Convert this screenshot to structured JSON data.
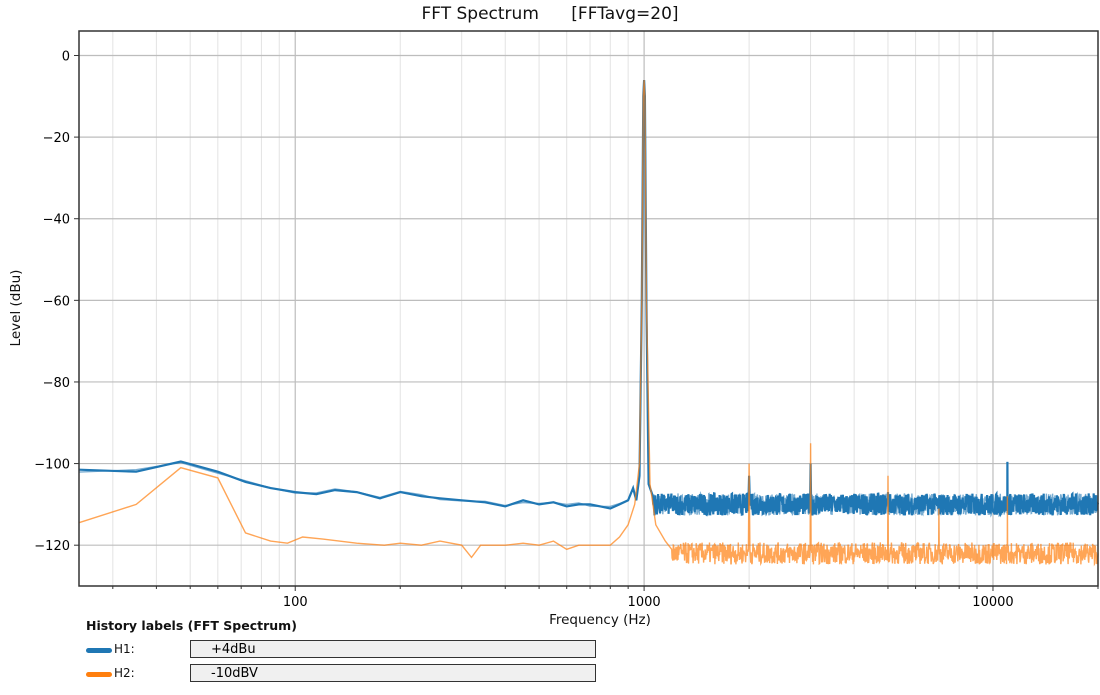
{
  "chart_title": "FFT Spectrum      [FFTavg=20]",
  "history": {
    "title": "History labels (FFT Spectrum)",
    "rows": [
      {
        "name": "H1:",
        "value": "+4dBu",
        "color": "#1f77b4"
      },
      {
        "name": "H2:",
        "value": "-10dBV",
        "color": "#ff7f0e"
      }
    ]
  },
  "chart_data": {
    "type": "line",
    "title": "FFT Spectrum      [FFTavg=20]",
    "xlabel": "Frequency (Hz)",
    "ylabel": "Level (dBu)",
    "xscale": "log",
    "xlim": [
      24,
      20000
    ],
    "ylim": [
      -130,
      6
    ],
    "xticks": [
      100,
      1000,
      10000
    ],
    "xtick_labels": [
      "100",
      "1000",
      "10000"
    ],
    "yticks": [
      0,
      -20,
      -40,
      -60,
      -80,
      -100,
      -120
    ],
    "ytick_labels": [
      "0",
      "−20",
      "−40",
      "−60",
      "−80",
      "−100",
      "−120"
    ],
    "grid": true,
    "legend": "none (history labels below plot)",
    "series": [
      {
        "name": "H1 (+4dBu)",
        "color": "#1f77b4",
        "width": 2.2,
        "points": [
          [
            24,
            -101.5
          ],
          [
            35,
            -102
          ],
          [
            47,
            -99.5
          ],
          [
            60,
            -102
          ],
          [
            72,
            -104.5
          ],
          [
            85,
            -106
          ],
          [
            100,
            -107
          ],
          [
            115,
            -107.5
          ],
          [
            130,
            -106.5
          ],
          [
            150,
            -107
          ],
          [
            175,
            -108.5
          ],
          [
            200,
            -107
          ],
          [
            230,
            -108
          ],
          [
            260,
            -108.5
          ],
          [
            300,
            -109
          ],
          [
            350,
            -109.5
          ],
          [
            400,
            -110.5
          ],
          [
            450,
            -109
          ],
          [
            500,
            -110
          ],
          [
            550,
            -109.5
          ],
          [
            600,
            -110.5
          ],
          [
            650,
            -110
          ],
          [
            700,
            -110
          ],
          [
            750,
            -110.5
          ],
          [
            800,
            -111
          ],
          [
            850,
            -110
          ],
          [
            900,
            -109
          ],
          [
            930,
            -106
          ],
          [
            950,
            -109
          ],
          [
            970,
            -103
          ],
          [
            985,
            -60
          ],
          [
            995,
            -10
          ],
          [
            1000,
            -6
          ],
          [
            1005,
            -10
          ],
          [
            1015,
            -60
          ],
          [
            1030,
            -105
          ],
          [
            1060,
            -108
          ],
          [
            1100,
            -110
          ],
          [
            1500,
            -110
          ],
          [
            1990,
            -110
          ],
          [
            2000,
            -103
          ],
          [
            2010,
            -110
          ],
          [
            2990,
            -110
          ],
          [
            3000,
            -100
          ],
          [
            3010,
            -110
          ],
          [
            4990,
            -110
          ],
          [
            5000,
            -107
          ],
          [
            5010,
            -110
          ],
          [
            10990,
            -110
          ],
          [
            11000,
            -99.6
          ],
          [
            11010,
            -111
          ],
          [
            20000,
            -110
          ]
        ],
        "noise_band_db": [
          -113,
          -107
        ],
        "noise_start_hz": 1060
      },
      {
        "name": "H2 (-10dBV)",
        "color": "#ff7f0e",
        "width": 1.4,
        "opacity": 0.7,
        "points": [
          [
            24,
            -114.5
          ],
          [
            35,
            -110
          ],
          [
            47,
            -101
          ],
          [
            60,
            -103.5
          ],
          [
            72,
            -117
          ],
          [
            85,
            -119
          ],
          [
            95,
            -119.5
          ],
          [
            105,
            -118
          ],
          [
            120,
            -118.5
          ],
          [
            150,
            -119.5
          ],
          [
            180,
            -120
          ],
          [
            200,
            -119.5
          ],
          [
            230,
            -120
          ],
          [
            260,
            -119
          ],
          [
            300,
            -120
          ],
          [
            320,
            -123
          ],
          [
            340,
            -120
          ],
          [
            400,
            -120
          ],
          [
            450,
            -119.5
          ],
          [
            500,
            -120
          ],
          [
            550,
            -119
          ],
          [
            600,
            -121
          ],
          [
            650,
            -120
          ],
          [
            700,
            -120
          ],
          [
            750,
            -120
          ],
          [
            800,
            -120
          ],
          [
            850,
            -118
          ],
          [
            900,
            -115
          ],
          [
            940,
            -110
          ],
          [
            970,
            -100
          ],
          [
            985,
            -60
          ],
          [
            995,
            -10
          ],
          [
            1000,
            -6
          ],
          [
            1005,
            -10
          ],
          [
            1015,
            -60
          ],
          [
            1040,
            -105
          ],
          [
            1080,
            -115
          ],
          [
            1150,
            -119
          ],
          [
            1200,
            -121
          ],
          [
            1990,
            -121
          ],
          [
            2000,
            -100
          ],
          [
            2010,
            -121
          ],
          [
            2990,
            -121
          ],
          [
            3000,
            -95
          ],
          [
            3010,
            -121
          ],
          [
            4990,
            -121
          ],
          [
            5000,
            -103
          ],
          [
            5010,
            -121
          ],
          [
            6990,
            -121
          ],
          [
            7000,
            -111
          ],
          [
            7010,
            -121
          ],
          [
            10990,
            -121
          ],
          [
            11000,
            -108
          ],
          [
            11010,
            -121
          ],
          [
            20000,
            -122
          ]
        ],
        "noise_band_db": [
          -125,
          -119
        ],
        "noise_start_hz": 1200
      }
    ]
  }
}
